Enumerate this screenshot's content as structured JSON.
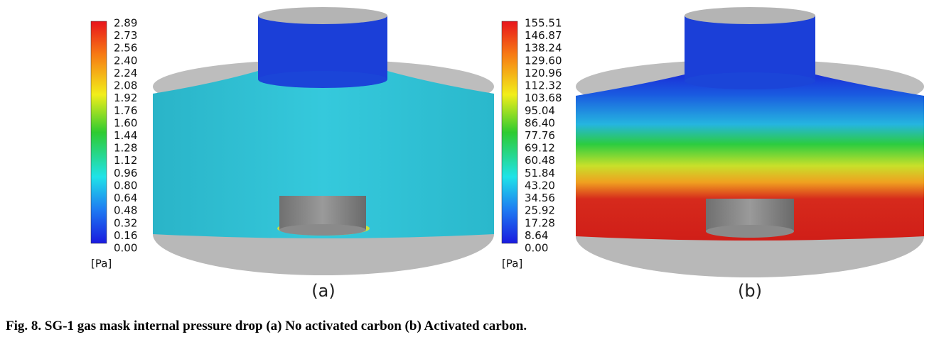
{
  "figure": {
    "panels": [
      {
        "colorbar_labels": [
          "2.89",
          "2.73",
          "2.56",
          "2.40",
          "2.24",
          "2.08",
          "1.92",
          "1.76",
          "1.60",
          "1.44",
          "1.28",
          "1.12",
          "0.96",
          "0.80",
          "0.64",
          "0.48",
          "0.32",
          "0.16",
          "0.00"
        ],
        "unit": "[Pa]",
        "label": "(a)"
      },
      {
        "colorbar_labels": [
          "155.51",
          "146.87",
          "138.24",
          "129.60",
          "120.96",
          "112.32",
          "103.68",
          "95.04",
          "86.40",
          "77.76",
          "69.12",
          "60.48",
          "51.84",
          "43.20",
          "34.56",
          "25.92",
          "17.28",
          "8.64",
          "0.00"
        ],
        "unit": "[Pa]",
        "label": "(b)"
      }
    ],
    "caption": "Fig. 8. SG-1 gas mask internal pressure drop (a) No activated carbon (b) Activated carbon."
  }
}
